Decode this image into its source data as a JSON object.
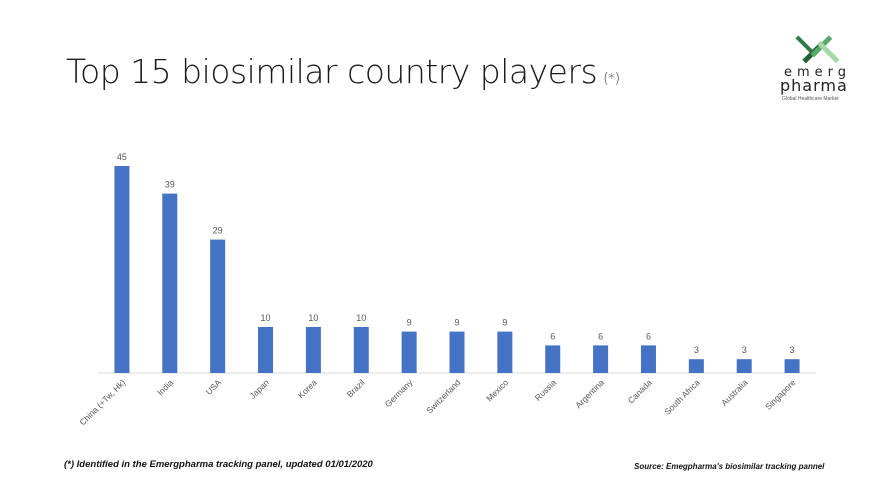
{
  "title": "Top 15 biosimilar country players",
  "title_mark": "(*)",
  "logo": {
    "word1": "emerg",
    "word2": "pharma",
    "tagline": "Global Healthcare Market",
    "colors": [
      "#1f5f3a",
      "#5aa86b",
      "#a9d8a8"
    ]
  },
  "footnote": "(*) Identified in the Emergpharma tracking panel, updated 01/01/2020",
  "source": "Source: Emegpharma's biosimilar tracking pannel",
  "colors": {
    "bar": "#4472c4",
    "axis": "#d9d9d9",
    "label": "#595959"
  },
  "chart_data": {
    "type": "bar",
    "title": "Top 15 biosimilar country players",
    "categories": [
      "China (+Tw, Hk)",
      "India",
      "USA",
      "Japan",
      "Korea",
      "Brazil",
      "Germany",
      "Switzerland",
      "Mexico",
      "Russia",
      "Argentina",
      "Canada",
      "South Africa",
      "Australia",
      "Singapore"
    ],
    "values": [
      45,
      39,
      29,
      10,
      10,
      10,
      9,
      9,
      9,
      6,
      6,
      6,
      3,
      3,
      3
    ],
    "ylim": [
      0,
      45
    ],
    "xlabel": "",
    "ylabel": "",
    "grid": false,
    "data_labels": true
  }
}
